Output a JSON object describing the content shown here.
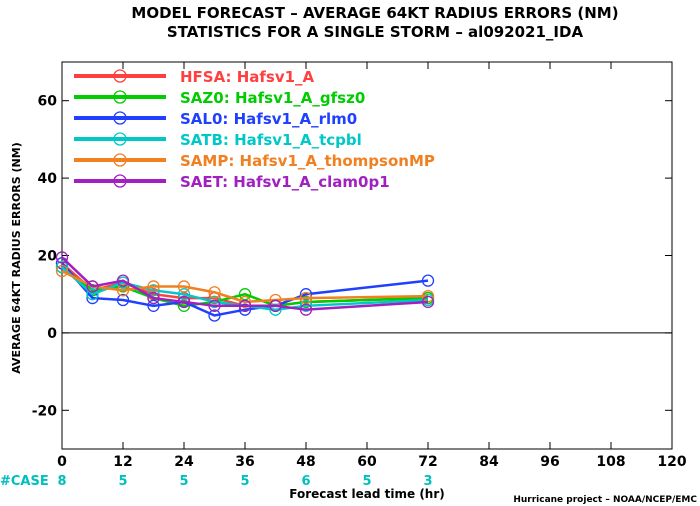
{
  "chart_data": {
    "type": "line",
    "title": [
      "MODEL FORECAST – AVERAGE 64KT RADIUS ERRORS (NM)",
      "STATISTICS FOR A SINGLE STORM – al092021_IDA"
    ],
    "xlabel": "Forecast lead time (hr)",
    "ylabel": "AVERAGE 64KT RADIUS ERRORS (NM)",
    "footer": "Hurricane project – NOAA/NCEP/EMC",
    "xlim": [
      0,
      120
    ],
    "ylim": [
      -30,
      70
    ],
    "xticks": [
      0,
      12,
      24,
      36,
      48,
      60,
      72,
      84,
      96,
      108,
      120
    ],
    "yticks": [
      -20,
      0,
      20,
      40,
      60
    ],
    "zero_line": true,
    "legend_position": "top-left",
    "cases": {
      "label": "#CASE",
      "x": [
        0,
        12,
        24,
        36,
        48,
        60,
        72
      ],
      "values": [
        "8",
        "5",
        "5",
        "5",
        "6",
        "5",
        "3"
      ],
      "color": "#00bfbf"
    },
    "series": [
      {
        "name": "HFSA:  Hafsv1_A",
        "color": "#ff4040",
        "x": [
          0,
          6,
          12,
          18,
          24,
          30,
          36,
          42,
          48,
          72
        ],
        "values": [
          18,
          11,
          13,
          10,
          9,
          9,
          7,
          7,
          8,
          9
        ]
      },
      {
        "name": "SAZ0:  Hafsv1_A_gfsz0",
        "color": "#00cc00",
        "x": [
          0,
          6,
          12,
          18,
          24,
          30,
          36,
          42,
          48,
          72
        ],
        "values": [
          17,
          11,
          12,
          9,
          7,
          8,
          10,
          7,
          8,
          9
        ]
      },
      {
        "name": "SAL0:  Hafsv1_A_rlm0",
        "color": "#2040ff",
        "x": [
          0,
          6,
          12,
          18,
          24,
          30,
          36,
          42,
          48,
          72
        ],
        "values": [
          18,
          9,
          8.5,
          7,
          8,
          4.5,
          6,
          7,
          10,
          13.5
        ]
      },
      {
        "name": "SATB:  Hafsv1_A_tcpbl",
        "color": "#00c8c8",
        "x": [
          0,
          6,
          12,
          18,
          24,
          30,
          36,
          42,
          48,
          72
        ],
        "values": [
          17,
          10,
          13,
          11,
          10,
          8,
          7,
          6,
          7,
          8.5
        ]
      },
      {
        "name": "SAMP:  Hafsv1_A_thompsonMP",
        "color": "#f08020",
        "x": [
          0,
          6,
          12,
          18,
          24,
          30,
          36,
          42,
          48,
          72
        ],
        "values": [
          16,
          12,
          11,
          12,
          12,
          10.5,
          8,
          8.5,
          9,
          9.5
        ]
      },
      {
        "name": "SAET:  Hafsv1_A_clam0p1",
        "color": "#a020c0",
        "x": [
          0,
          6,
          12,
          18,
          24,
          30,
          36,
          42,
          48,
          72
        ],
        "values": [
          19.5,
          12,
          13.5,
          9,
          8,
          7,
          7,
          7,
          6,
          8
        ]
      }
    ]
  }
}
